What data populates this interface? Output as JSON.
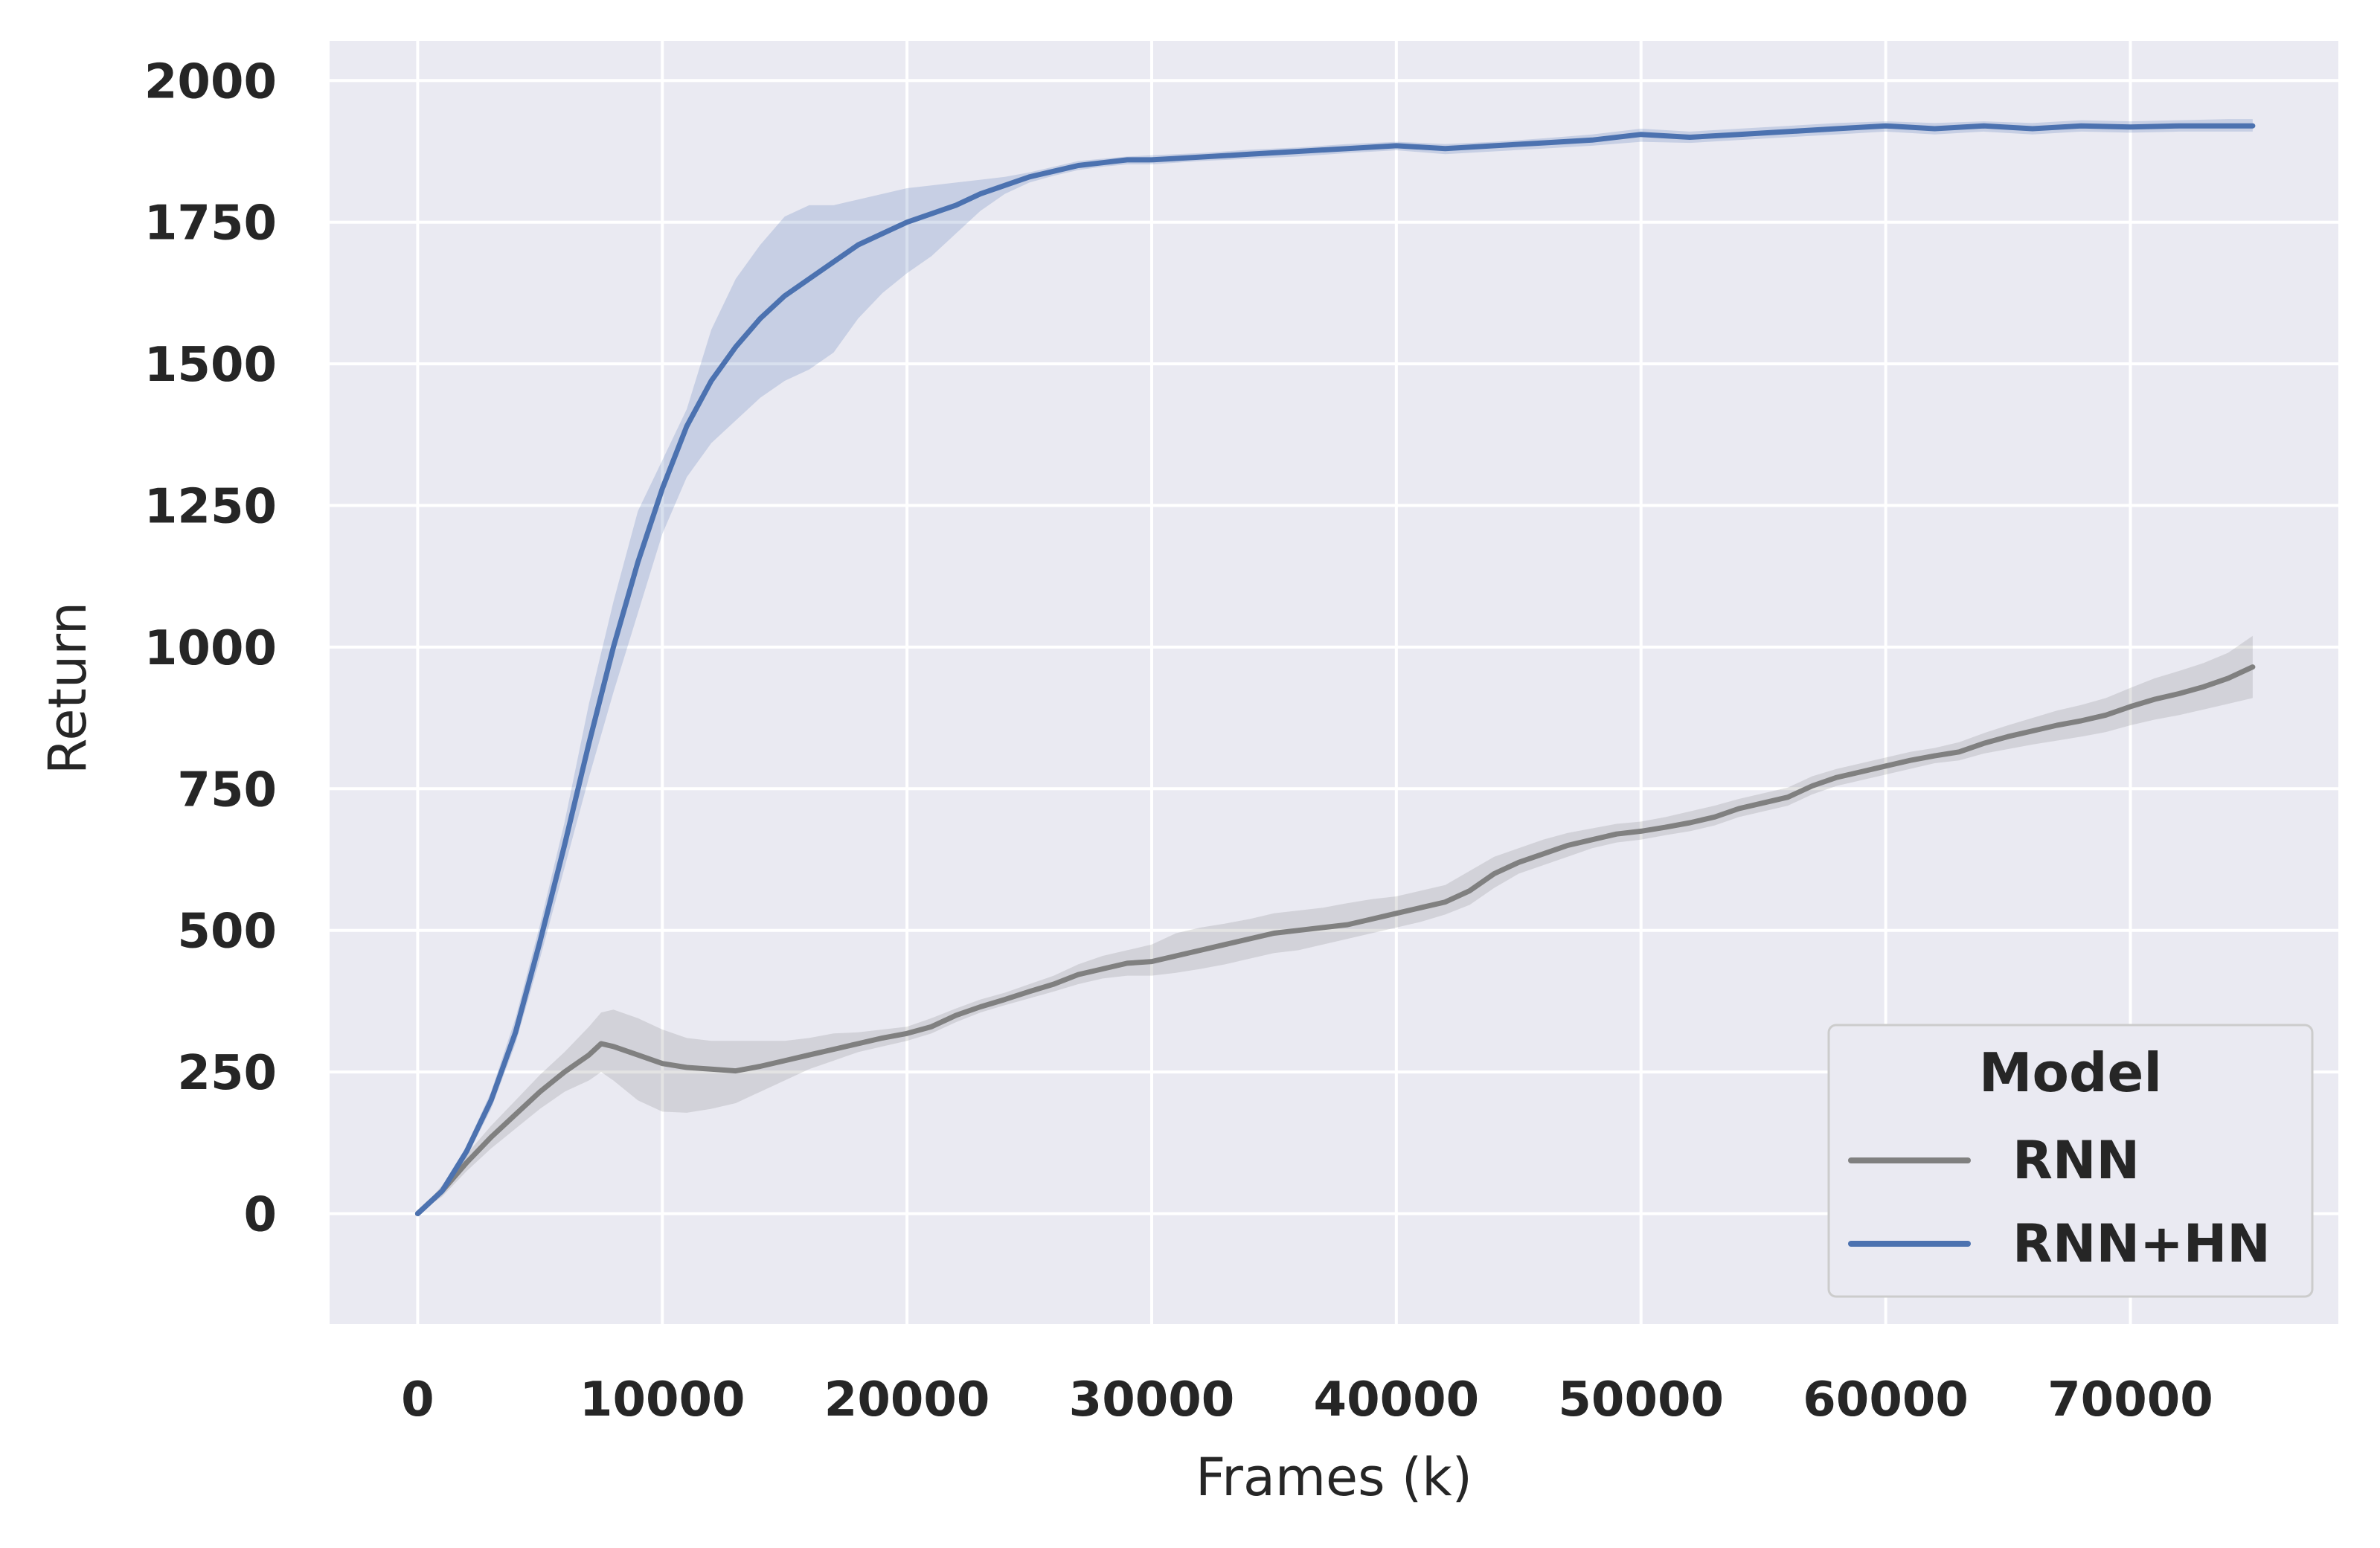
{
  "chart_data": {
    "type": "line",
    "title": "",
    "xlabel": "Frames (k)",
    "ylabel": "Return",
    "xlim": [
      -3600,
      78500
    ],
    "ylim": [
      -195,
      2070
    ],
    "grid": true,
    "x_ticks": [
      0,
      10000,
      20000,
      30000,
      40000,
      50000,
      60000,
      70000
    ],
    "x_tick_labels": [
      "0",
      "10000",
      "20000",
      "30000",
      "40000",
      "50000",
      "60000",
      "70000"
    ],
    "y_ticks": [
      0,
      250,
      500,
      750,
      1000,
      1250,
      1500,
      1750,
      2000
    ],
    "y_tick_labels": [
      "0",
      "250",
      "500",
      "750",
      "1000",
      "1250",
      "1500",
      "1750",
      "2000"
    ],
    "legend": {
      "title": "Model",
      "position": "bottom-right",
      "entries": [
        "RNN",
        "RNN+HN"
      ]
    },
    "series": [
      {
        "name": "RNN",
        "color": "#808080",
        "x": [
          0,
          1000,
          2000,
          3000,
          4000,
          5000,
          6000,
          7000,
          7500,
          8000,
          9000,
          10000,
          11000,
          12000,
          13000,
          14000,
          15000,
          16000,
          17000,
          18000,
          19000,
          20000,
          21000,
          22000,
          23000,
          24000,
          25000,
          26000,
          27000,
          28000,
          29000,
          30000,
          31000,
          32000,
          33000,
          34000,
          35000,
          36000,
          37000,
          38000,
          39000,
          40000,
          41000,
          42000,
          43000,
          44000,
          45000,
          46000,
          47000,
          48000,
          49000,
          50000,
          51000,
          52000,
          53000,
          54000,
          55000,
          56000,
          57000,
          58000,
          59000,
          60000,
          61000,
          62000,
          63000,
          64000,
          65000,
          66000,
          67000,
          68000,
          69000,
          70000,
          71000,
          72000,
          73000,
          74000,
          75000
        ],
        "y": [
          0,
          40,
          90,
          135,
          175,
          215,
          250,
          280,
          300,
          295,
          280,
          265,
          258,
          255,
          252,
          260,
          270,
          280,
          290,
          300,
          310,
          318,
          330,
          350,
          365,
          378,
          392,
          405,
          422,
          432,
          442,
          445,
          455,
          465,
          475,
          485,
          495,
          500,
          505,
          510,
          520,
          530,
          540,
          550,
          570,
          600,
          620,
          635,
          650,
          660,
          670,
          675,
          682,
          690,
          700,
          715,
          725,
          735,
          755,
          770,
          780,
          790,
          800,
          808,
          815,
          830,
          842,
          852,
          862,
          870,
          880,
          895,
          908,
          918,
          930,
          945,
          965
        ],
        "lower": [
          0,
          30,
          75,
          115,
          150,
          185,
          215,
          235,
          250,
          235,
          200,
          180,
          178,
          185,
          195,
          215,
          235,
          255,
          270,
          285,
          295,
          305,
          318,
          338,
          355,
          368,
          380,
          392,
          405,
          415,
          420,
          420,
          425,
          432,
          440,
          450,
          460,
          465,
          475,
          485,
          495,
          505,
          515,
          528,
          545,
          575,
          600,
          615,
          630,
          645,
          655,
          660,
          668,
          675,
          685,
          700,
          710,
          720,
          740,
          755,
          765,
          775,
          785,
          795,
          800,
          812,
          820,
          828,
          835,
          842,
          850,
          862,
          872,
          880,
          890,
          900,
          910
        ],
        "upper": [
          0,
          50,
          105,
          155,
          200,
          245,
          285,
          330,
          355,
          360,
          345,
          325,
          310,
          305,
          305,
          305,
          305,
          310,
          318,
          320,
          325,
          330,
          345,
          362,
          378,
          390,
          405,
          420,
          440,
          455,
          465,
          475,
          495,
          505,
          512,
          520,
          530,
          535,
          540,
          548,
          555,
          560,
          570,
          580,
          605,
          630,
          645,
          660,
          672,
          680,
          688,
          692,
          700,
          710,
          720,
          732,
          742,
          752,
          772,
          785,
          795,
          805,
          815,
          822,
          832,
          848,
          862,
          875,
          888,
          898,
          910,
          928,
          945,
          958,
          972,
          990,
          1020
        ]
      },
      {
        "name": "RNN+HN",
        "color": "#4c72b0",
        "x": [
          0,
          1000,
          2000,
          3000,
          4000,
          5000,
          6000,
          7000,
          8000,
          9000,
          10000,
          11000,
          12000,
          13000,
          14000,
          15000,
          16000,
          17000,
          18000,
          19000,
          20000,
          21000,
          22000,
          23000,
          24000,
          25000,
          26000,
          27000,
          28000,
          29000,
          30000,
          32000,
          34000,
          36000,
          38000,
          40000,
          42000,
          44000,
          46000,
          48000,
          50000,
          52000,
          54000,
          56000,
          58000,
          60000,
          62000,
          64000,
          66000,
          68000,
          70000,
          72000,
          74000,
          75000
        ],
        "y": [
          0,
          40,
          110,
          200,
          320,
          480,
          650,
          830,
          1000,
          1150,
          1280,
          1390,
          1470,
          1530,
          1580,
          1620,
          1650,
          1680,
          1710,
          1730,
          1750,
          1765,
          1780,
          1800,
          1815,
          1830,
          1840,
          1850,
          1855,
          1860,
          1860,
          1865,
          1870,
          1875,
          1880,
          1885,
          1880,
          1885,
          1890,
          1895,
          1905,
          1900,
          1905,
          1910,
          1915,
          1920,
          1915,
          1920,
          1915,
          1920,
          1918,
          1920,
          1920,
          1920
        ],
        "lower": [
          0,
          35,
          100,
          185,
          300,
          450,
          610,
          770,
          920,
          1060,
          1200,
          1300,
          1360,
          1400,
          1440,
          1470,
          1490,
          1520,
          1580,
          1625,
          1660,
          1690,
          1730,
          1770,
          1800,
          1820,
          1832,
          1842,
          1848,
          1852,
          1852,
          1858,
          1862,
          1866,
          1872,
          1877,
          1870,
          1875,
          1880,
          1885,
          1892,
          1890,
          1895,
          1900,
          1905,
          1910,
          1905,
          1910,
          1905,
          1910,
          1908,
          1910,
          1910,
          1910
        ],
        "upper": [
          0,
          45,
          120,
          215,
          345,
          510,
          690,
          900,
          1080,
          1240,
          1330,
          1420,
          1560,
          1650,
          1710,
          1760,
          1780,
          1780,
          1790,
          1800,
          1810,
          1815,
          1820,
          1825,
          1830,
          1838,
          1848,
          1858,
          1862,
          1866,
          1868,
          1872,
          1878,
          1882,
          1888,
          1892,
          1888,
          1892,
          1898,
          1905,
          1915,
          1910,
          1915,
          1920,
          1925,
          1928,
          1925,
          1928,
          1925,
          1930,
          1928,
          1930,
          1932,
          1932
        ]
      }
    ]
  }
}
